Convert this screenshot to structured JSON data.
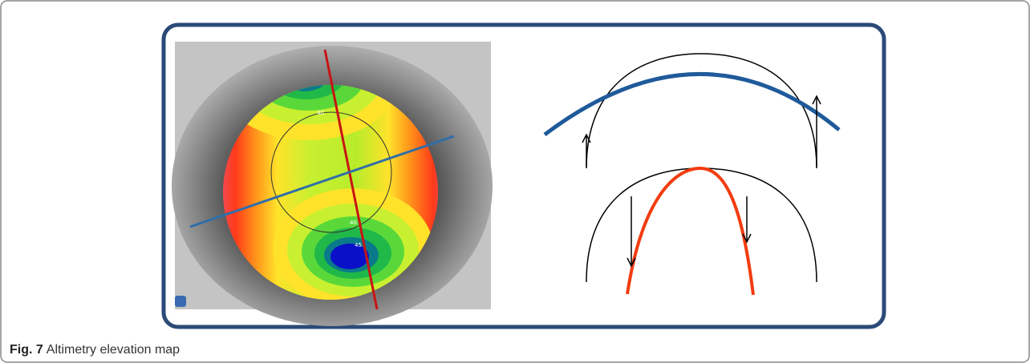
{
  "figure": {
    "label": "Fig. 7",
    "caption": "Altimetry elevation map",
    "map_labels": [
      "40",
      "40",
      "45"
    ]
  }
}
